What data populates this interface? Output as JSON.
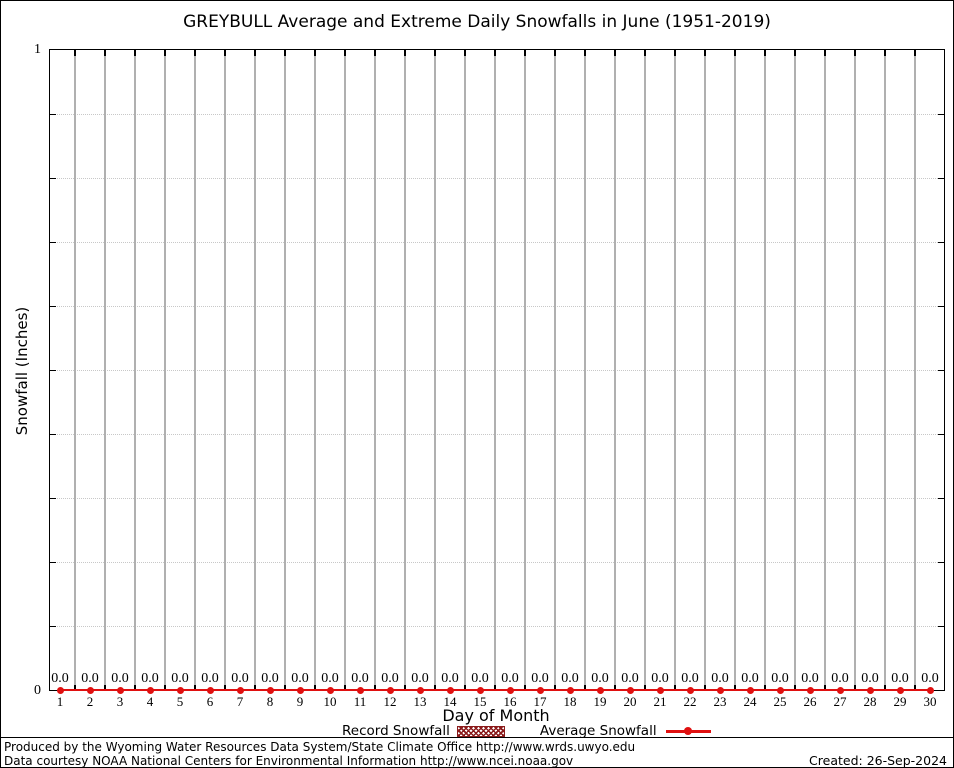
{
  "title": "GREYBULL Average and Extreme Daily Snowfalls in June (1951-2019)",
  "chart_data": {
    "type": "line",
    "title": "GREYBULL Average and Extreme Daily Snowfalls in June (1951-2019)",
    "xlabel": "Day of Month",
    "ylabel": "Snowfall (Inches)",
    "x": [
      1,
      2,
      3,
      4,
      5,
      6,
      7,
      8,
      9,
      10,
      11,
      12,
      13,
      14,
      15,
      16,
      17,
      18,
      19,
      20,
      21,
      22,
      23,
      24,
      25,
      26,
      27,
      28,
      29,
      30
    ],
    "ylim": [
      0,
      1
    ],
    "y_axis": {
      "top_label": "1",
      "bottom_label": "0"
    },
    "y_gridline_values": [
      0.1,
      0.2,
      0.3,
      0.4,
      0.5,
      0.6,
      0.7,
      0.8,
      0.9
    ],
    "grid": {
      "horizontal": "dotted",
      "vertical": "solid-at-day-boundaries"
    },
    "legend_position": "bottom-center",
    "series": [
      {
        "name": "Record Snowfall",
        "style": "hatched-box",
        "color": "#8b1a1a",
        "values": [
          0.0,
          0.0,
          0.0,
          0.0,
          0.0,
          0.0,
          0.0,
          0.0,
          0.0,
          0.0,
          0.0,
          0.0,
          0.0,
          0.0,
          0.0,
          0.0,
          0.0,
          0.0,
          0.0,
          0.0,
          0.0,
          0.0,
          0.0,
          0.0,
          0.0,
          0.0,
          0.0,
          0.0,
          0.0,
          0.0
        ]
      },
      {
        "name": "Average Snowfall",
        "style": "line-with-point",
        "color": "#e01010",
        "values": [
          0.0,
          0.0,
          0.0,
          0.0,
          0.0,
          0.0,
          0.0,
          0.0,
          0.0,
          0.0,
          0.0,
          0.0,
          0.0,
          0.0,
          0.0,
          0.0,
          0.0,
          0.0,
          0.0,
          0.0,
          0.0,
          0.0,
          0.0,
          0.0,
          0.0,
          0.0,
          0.0,
          0.0,
          0.0,
          0.0
        ]
      }
    ],
    "point_labels": [
      "0.0",
      "0.0",
      "0.0",
      "0.0",
      "0.0",
      "0.0",
      "0.0",
      "0.0",
      "0.0",
      "0.0",
      "0.0",
      "0.0",
      "0.0",
      "0.0",
      "0.0",
      "0.0",
      "0.0",
      "0.0",
      "0.0",
      "0.0",
      "0.0",
      "0.0",
      "0.0",
      "0.0",
      "0.0",
      "0.0",
      "0.0",
      "0.0",
      "0.0",
      "0.0"
    ]
  },
  "legend": {
    "items": [
      {
        "label": "Record Snowfall",
        "swatch": "hatched-dark-red",
        "color": "#8b1a1a"
      },
      {
        "label": "Average Snowfall",
        "swatch": "red-line-with-marker",
        "color": "#e01010"
      }
    ]
  },
  "footer": {
    "line1": "Produced by the Wyoming Water Resources Data System/State Climate Office http://www.wrds.uwyo.edu",
    "line2": "Data courtesy NOAA National Centers for Environmental Information http://www.ncei.noaa.gov",
    "created": "Created: 26-Sep-2024"
  },
  "colors": {
    "average_line": "#e01010",
    "record_fill": "#8b1a1a",
    "grid_vertical": "#b0b0b0",
    "grid_dotted": "#c8c8c8",
    "axis": "#000000"
  }
}
